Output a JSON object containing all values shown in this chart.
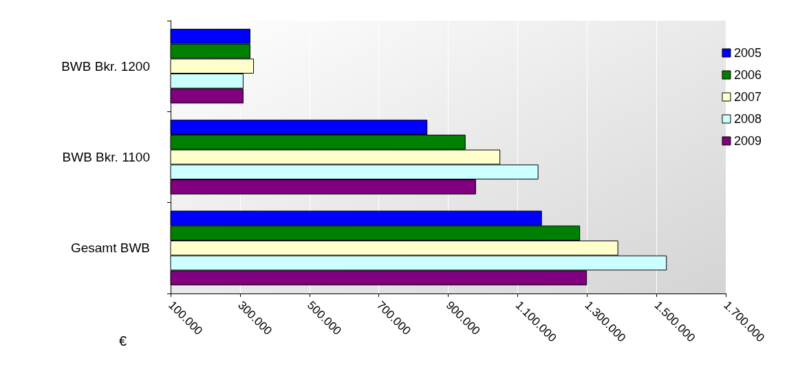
{
  "chart_data": {
    "type": "bar",
    "orientation": "horizontal",
    "xlabel": "€",
    "categories": [
      "BWB Bkr. 1200",
      "BWB Bkr. 1100",
      "Gesamt BWB"
    ],
    "series": [
      {
        "name": "2005",
        "color": "#0000ff",
        "values": [
          330000,
          840000,
          1170000
        ]
      },
      {
        "name": "2006",
        "color": "#008000",
        "values": [
          330000,
          950000,
          1280000
        ]
      },
      {
        "name": "2007",
        "color": "#ffffcc",
        "values": [
          340000,
          1050000,
          1390000
        ]
      },
      {
        "name": "2008",
        "color": "#ccffff",
        "values": [
          310000,
          1160000,
          1530000
        ]
      },
      {
        "name": "2009",
        "color": "#800080",
        "values": [
          310000,
          980000,
          1300000
        ]
      }
    ],
    "xlim": [
      100000,
      1700000
    ],
    "xticks": [
      {
        "value": 100000,
        "label": "100.000"
      },
      {
        "value": 300000,
        "label": "300.000"
      },
      {
        "value": 500000,
        "label": "500.000"
      },
      {
        "value": 700000,
        "label": "700.000"
      },
      {
        "value": 900000,
        "label": "900.000"
      },
      {
        "value": 1100000,
        "label": "1.100.000"
      },
      {
        "value": 1300000,
        "label": "1.300.000"
      },
      {
        "value": 1500000,
        "label": "1.500.000"
      },
      {
        "value": 1700000,
        "label": "1.700.000"
      }
    ],
    "grid": "x",
    "legend": "top right"
  }
}
